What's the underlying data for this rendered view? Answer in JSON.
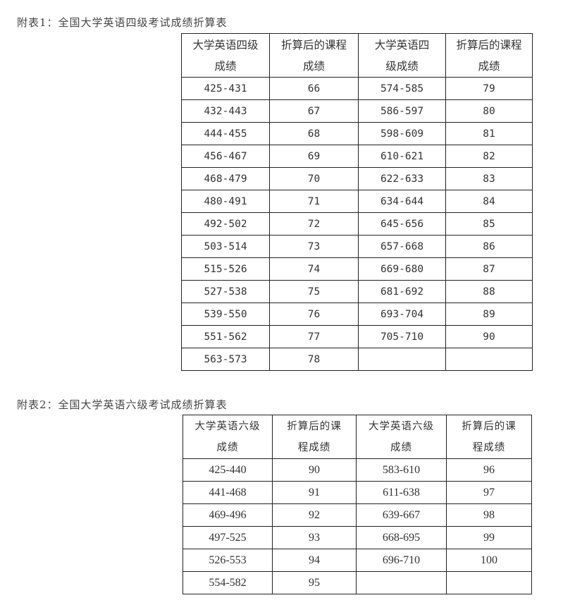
{
  "table1": {
    "title": "附表1：全国大学英语四级考试成绩折算表",
    "headers": [
      [
        "大学英语四级",
        "成绩"
      ],
      [
        "折算后的课程",
        "成绩"
      ],
      [
        "大学英语四",
        "级成绩"
      ],
      [
        "折算后的课程",
        "成绩"
      ]
    ],
    "rows": [
      [
        "425-431",
        "66",
        "574-585",
        "79"
      ],
      [
        "432-443",
        "67",
        "586-597",
        "80"
      ],
      [
        "444-455",
        "68",
        "598-609",
        "81"
      ],
      [
        "456-467",
        "69",
        "610-621",
        "82"
      ],
      [
        "468-479",
        "70",
        "622-633",
        "83"
      ],
      [
        "480-491",
        "71",
        "634-644",
        "84"
      ],
      [
        "492-502",
        "72",
        "645-656",
        "85"
      ],
      [
        "503-514",
        "73",
        "657-668",
        "86"
      ],
      [
        "515-526",
        "74",
        "669-680",
        "87"
      ],
      [
        "527-538",
        "75",
        "681-692",
        "88"
      ],
      [
        "539-550",
        "76",
        "693-704",
        "89"
      ],
      [
        "551-562",
        "77",
        "705-710",
        "90"
      ],
      [
        "563-573",
        "78",
        "",
        ""
      ]
    ]
  },
  "table2": {
    "title": "附表2：全国大学英语六级考试成绩折算表",
    "headers": [
      [
        "大学英语六级",
        "成绩"
      ],
      [
        "折算后的课",
        "程成绩"
      ],
      [
        "大学英语六级",
        "成绩"
      ],
      [
        "折算后的课",
        "程成绩"
      ]
    ],
    "rows": [
      [
        "425-440",
        "90",
        "583-610",
        "96"
      ],
      [
        "441-468",
        "91",
        "611-638",
        "97"
      ],
      [
        "469-496",
        "92",
        "639-667",
        "98"
      ],
      [
        "497-525",
        "93",
        "668-695",
        "99"
      ],
      [
        "526-553",
        "94",
        "696-710",
        "100"
      ],
      [
        "554-582",
        "95",
        "",
        ""
      ]
    ]
  }
}
